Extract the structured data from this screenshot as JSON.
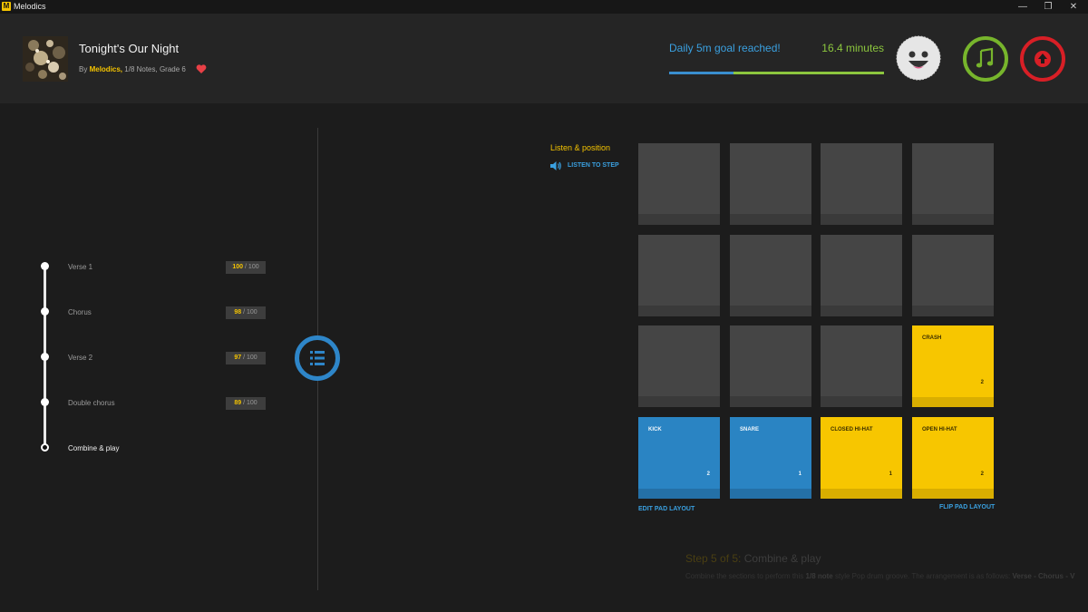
{
  "window": {
    "title": "Melodics",
    "icon_letter": "M",
    "controls": [
      "—",
      "❐",
      "✕"
    ]
  },
  "song": {
    "title": "Tonight's Our Night",
    "by": "By",
    "artist": "Melodics,",
    "details": "1/8 Notes, Grade 6"
  },
  "goal": {
    "text": "Daily 5m goal reached!",
    "minutes": "16.4 minutes",
    "progress_fraction": 0.3
  },
  "sections": [
    {
      "label": "Verse 1",
      "score": "100",
      "max": "/ 100"
    },
    {
      "label": "Chorus",
      "score": "98",
      "max": "/ 100"
    },
    {
      "label": "Verse 2",
      "score": "97",
      "max": "/ 100"
    },
    {
      "label": "Double chorus",
      "score": "89",
      "max": "/ 100"
    },
    {
      "label": "Combine & play",
      "current": true
    }
  ],
  "listen": {
    "title": "Listen & position",
    "step_label": "LISTEN TO STEP"
  },
  "pads": {
    "crash": {
      "name": "CRASH",
      "count": "2"
    },
    "kick": {
      "name": "KICK",
      "count": "2"
    },
    "snare": {
      "name": "SNARE",
      "count": "1"
    },
    "closed_hihat": {
      "name": "CLOSED HI-HAT",
      "count": "1"
    },
    "open_hihat": {
      "name": "OPEN HI-HAT",
      "count": "2"
    },
    "edit_layout": "EDIT PAD LAYOUT",
    "flip_layout": "FLIP PAD LAYOUT"
  },
  "step": {
    "prefix": "Step 5 of 5:",
    "name": "Combine & play",
    "desc_1": "Combine the sections to perform this",
    "desc_bold_1": "1/8 note",
    "desc_2": "style Pop drum groove. The arrangement is as follows:",
    "desc_bold_2": "Verse - Chorus - V"
  },
  "colors": {
    "accent_yellow": "#f7c600",
    "accent_blue": "#2a84c3",
    "goal_green": "#8cc63e",
    "record_red": "#d81f26"
  }
}
